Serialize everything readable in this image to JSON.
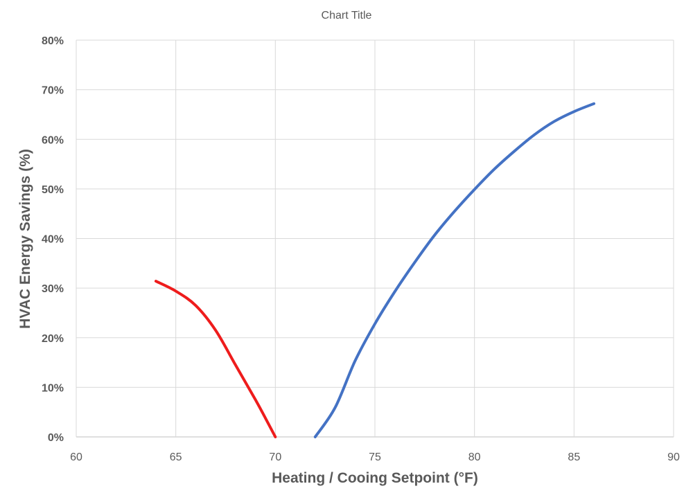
{
  "chart_data": {
    "type": "line",
    "title": "Chart Title",
    "xlabel": "Heating / Cooing Setpoint (°F)",
    "ylabel": "HVAC Energy Savings (%)",
    "xlim": [
      60,
      90
    ],
    "ylim": [
      0,
      80
    ],
    "x_ticks": [
      60,
      65,
      70,
      75,
      80,
      85,
      90
    ],
    "y_ticks": [
      0,
      10,
      20,
      30,
      40,
      50,
      60,
      70,
      80
    ],
    "y_tick_format": "percent",
    "grid": true,
    "legend": "none",
    "series": [
      {
        "color": "#EE1C1C",
        "points": [
          [
            64,
            31.4
          ],
          [
            65,
            29.4
          ],
          [
            66,
            26.5
          ],
          [
            67,
            21.5
          ],
          [
            68,
            14.5
          ],
          [
            69,
            7.5
          ],
          [
            69.5,
            3.8
          ],
          [
            70,
            0
          ]
        ]
      },
      {
        "color": "#4472C4",
        "points": [
          [
            72,
            0
          ],
          [
            73,
            5.9
          ],
          [
            74,
            15.3
          ],
          [
            75,
            22.8
          ],
          [
            76,
            29.3
          ],
          [
            77,
            35.2
          ],
          [
            78,
            40.7
          ],
          [
            79,
            45.5
          ],
          [
            80,
            49.9
          ],
          [
            81,
            54.0
          ],
          [
            82,
            57.6
          ],
          [
            83,
            60.9
          ],
          [
            84,
            63.6
          ],
          [
            85,
            65.6
          ],
          [
            86,
            67.2
          ]
        ]
      }
    ]
  }
}
